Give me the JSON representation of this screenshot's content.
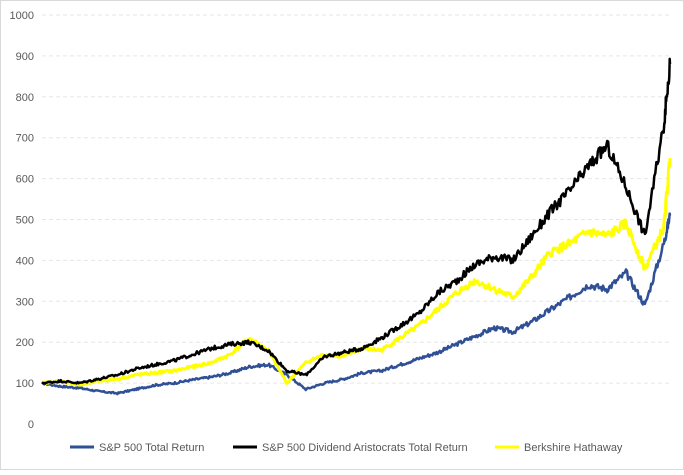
{
  "chart_data": {
    "type": "line",
    "title": "",
    "xlabel": "",
    "ylabel": "",
    "ylim": [
      0,
      1000
    ],
    "yticks": [
      0,
      100,
      200,
      300,
      400,
      500,
      600,
      700,
      800,
      900,
      1000
    ],
    "grid": "horizontal-dashed",
    "legend_position": "bottom",
    "x": [
      0,
      3,
      6,
      9,
      12,
      15,
      18,
      21,
      24,
      27,
      30,
      33,
      36,
      39,
      42,
      45,
      48,
      51,
      54,
      57,
      60,
      63,
      66,
      69,
      72,
      75,
      78,
      81,
      84,
      87,
      90,
      93,
      96,
      99,
      100
    ],
    "series": [
      {
        "name": "S&P 500 Total Return",
        "color": "#2f4f96",
        "values": [
          100,
          92,
          88,
          80,
          75,
          85,
          95,
          100,
          108,
          115,
          125,
          140,
          145,
          120,
          85,
          100,
          110,
          125,
          130,
          145,
          160,
          175,
          195,
          215,
          235,
          225,
          250,
          280,
          310,
          340,
          330,
          370,
          290,
          440,
          510
        ]
      },
      {
        "name": "S&P 500 Dividend Aristocrats Total Return",
        "color": "#000000",
        "values": [
          100,
          105,
          100,
          110,
          120,
          135,
          145,
          155,
          170,
          185,
          195,
          200,
          180,
          130,
          120,
          165,
          175,
          185,
          210,
          240,
          270,
          320,
          350,
          390,
          410,
          400,
          460,
          520,
          570,
          630,
          680,
          580,
          460,
          730,
          880
        ]
      },
      {
        "name": "Berkshire Hathaway",
        "color": "#ffff00",
        "values": [
          100,
          105,
          95,
          105,
          110,
          120,
          125,
          130,
          140,
          150,
          170,
          210,
          180,
          100,
          150,
          170,
          165,
          185,
          180,
          210,
          240,
          280,
          320,
          350,
          330,
          310,
          360,
          420,
          440,
          470,
          460,
          490,
          380,
          480,
          650
        ]
      }
    ]
  }
}
